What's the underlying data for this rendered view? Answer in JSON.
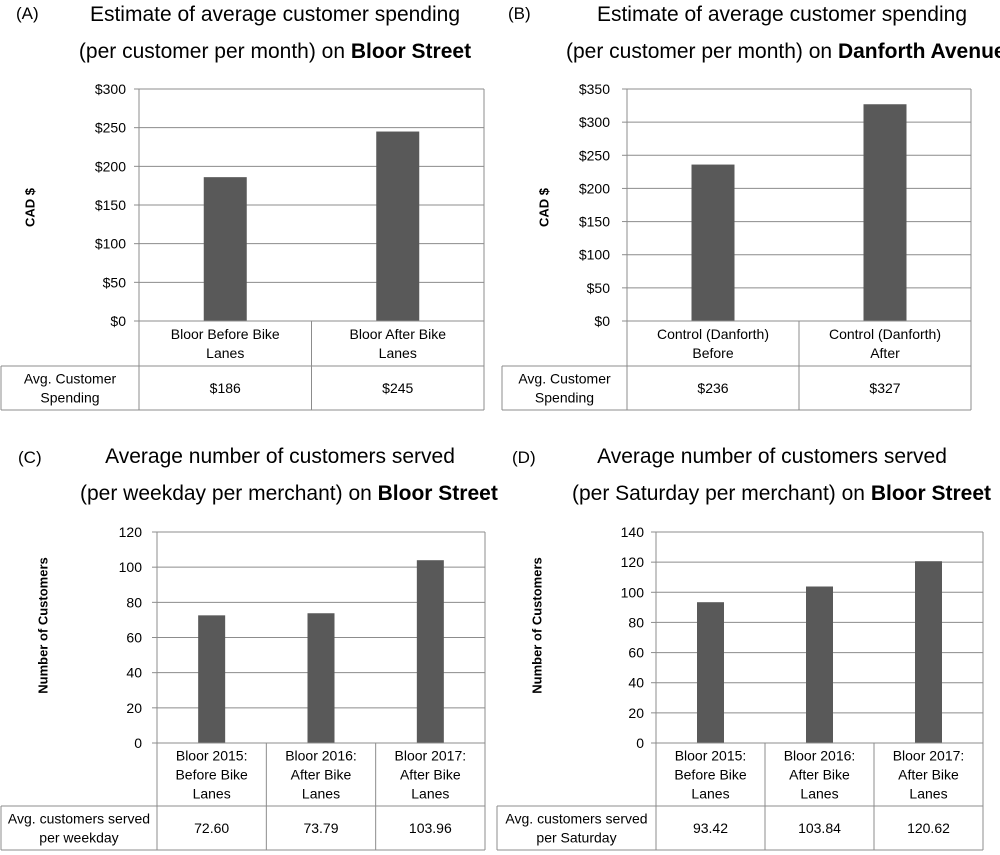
{
  "chart_data": [
    {
      "type": "bar",
      "panel_label": "(A)",
      "title_line1": "Estimate of average customer spending",
      "title_line2_pre": "(per customer per month) on ",
      "title_line2_bold": "Bloor Street",
      "ylabel": "CAD $",
      "ylim": [
        0,
        300
      ],
      "yticks": [
        "$0",
        "$50",
        "$100",
        "$150",
        "$200",
        "$250",
        "$300"
      ],
      "categories": [
        [
          "Bloor Before Bike",
          "Lanes"
        ],
        [
          "Bloor After Bike",
          "Lanes"
        ]
      ],
      "values": [
        186,
        245
      ],
      "table_header": [
        "Avg. Customer",
        "Spending"
      ],
      "table_values": [
        "$186",
        "$245"
      ],
      "bar_color": "#595959",
      "grid": true
    },
    {
      "type": "bar",
      "panel_label": "(B)",
      "title_line1": "Estimate of average customer spending",
      "title_line2_pre": "(per customer per month) on ",
      "title_line2_bold": "Danforth Avenue",
      "ylabel": "CAD $",
      "ylim": [
        0,
        350
      ],
      "yticks": [
        "$0",
        "$50",
        "$100",
        "$150",
        "$200",
        "$250",
        "$300",
        "$350"
      ],
      "categories": [
        [
          "Control (Danforth)",
          "Before"
        ],
        [
          "Control (Danforth)",
          "After"
        ]
      ],
      "values": [
        236,
        327
      ],
      "table_header": [
        "Avg. Customer",
        "Spending"
      ],
      "table_values": [
        "$236",
        "$327"
      ],
      "bar_color": "#595959",
      "grid": true
    },
    {
      "type": "bar",
      "panel_label": "(C)",
      "title_line1": "Average number of customers served",
      "title_line2_pre": "(per weekday per merchant) on ",
      "title_line2_bold": "Bloor Street",
      "ylabel": "Number of Customers",
      "ylim": [
        0,
        120
      ],
      "yticks": [
        "0",
        "20",
        "40",
        "60",
        "80",
        "100",
        "120"
      ],
      "categories": [
        [
          "Bloor 2015:",
          "Before Bike",
          "Lanes"
        ],
        [
          "Bloor 2016:",
          "After Bike",
          "Lanes"
        ],
        [
          "Bloor 2017:",
          "After Bike",
          "Lanes"
        ]
      ],
      "values": [
        72.6,
        73.79,
        103.96
      ],
      "table_header": [
        "Avg. customers served",
        "per weekday"
      ],
      "table_values": [
        "72.60",
        "73.79",
        "103.96"
      ],
      "bar_color": "#595959",
      "grid": true
    },
    {
      "type": "bar",
      "panel_label": "(D)",
      "title_line1": "Average number of customers served",
      "title_line2_pre": "(per Saturday per merchant) on ",
      "title_line2_bold": "Bloor Street",
      "ylabel": "Number of Customers",
      "ylim": [
        0,
        140
      ],
      "yticks": [
        "0",
        "20",
        "40",
        "60",
        "80",
        "100",
        "120",
        "140"
      ],
      "categories": [
        [
          "Bloor 2015:",
          "Before Bike",
          "Lanes"
        ],
        [
          "Bloor 2016:",
          "After Bike",
          "Lanes"
        ],
        [
          "Bloor 2017:",
          "After Bike",
          "Lanes"
        ]
      ],
      "values": [
        93.42,
        103.84,
        120.62
      ],
      "table_header": [
        "Avg. customers served",
        "per Saturday"
      ],
      "table_values": [
        "93.42",
        "103.84",
        "120.62"
      ],
      "bar_color": "#595959",
      "grid": true
    }
  ]
}
